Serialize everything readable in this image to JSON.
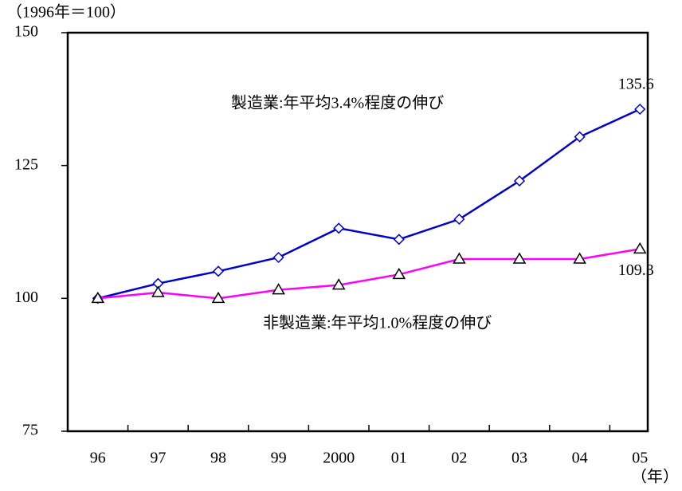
{
  "chart_data": {
    "type": "line",
    "y_unit_label": "（1996年＝100）",
    "x_unit_label": "（年）",
    "categories": [
      "96",
      "97",
      "98",
      "99",
      "2000",
      "01",
      "02",
      "03",
      "04",
      "05"
    ],
    "series": [
      {
        "color": "#0000cc",
        "marker": "diamond",
        "values": [
          100,
          102.8,
          105.1,
          107.7,
          113.2,
          111.1,
          114.9,
          122.1,
          130.4,
          135.6
        ],
        "value_labels": [
          null,
          null,
          null,
          null,
          null,
          null,
          null,
          null,
          null,
          "135.6"
        ]
      },
      {
        "color": "#ff00ff",
        "marker": "triangle",
        "values": [
          100,
          101.1,
          100,
          101.6,
          102.5,
          104.5,
          107.4,
          107.4,
          107.4,
          109.3
        ],
        "value_labels": [
          null,
          null,
          null,
          null,
          null,
          null,
          null,
          null,
          null,
          "109.3"
        ]
      }
    ],
    "annotations": [
      "製造業:年平均3.4%程度の伸び",
      "非製造業:年平均1.0%程度の伸び"
    ],
    "ylim": [
      75,
      150
    ],
    "yticks": [
      75,
      100,
      125,
      150
    ]
  }
}
